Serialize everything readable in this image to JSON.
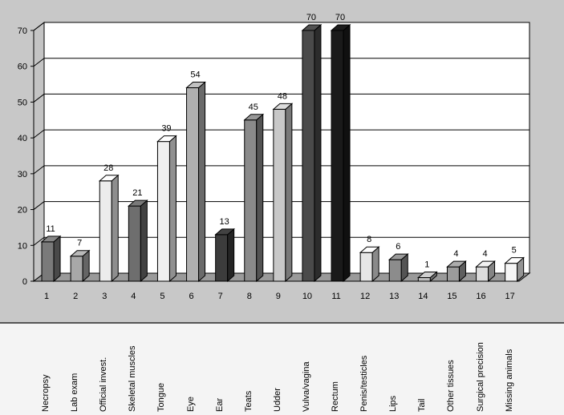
{
  "chart_data": {
    "type": "bar",
    "title": "",
    "xlabel": "",
    "ylabel": "",
    "ylim": [
      0,
      70
    ],
    "yticks": [
      0,
      10,
      20,
      30,
      40,
      50,
      60,
      70
    ],
    "grid": true,
    "categories": [
      "1",
      "2",
      "3",
      "4",
      "5",
      "6",
      "7",
      "8",
      "9",
      "10",
      "11",
      "12",
      "13",
      "14",
      "15",
      "16",
      "17"
    ],
    "values": [
      11,
      7,
      28,
      21,
      39,
      54,
      13,
      45,
      48,
      70,
      70,
      8,
      6,
      1,
      4,
      4,
      5
    ],
    "category_names": [
      "Necropsy",
      "Lab exam",
      "Official invest.",
      "Skeletal muscles",
      "Tongue",
      "Eye",
      "Ear",
      "Teats",
      "Udder",
      "Vulva/vagina",
      "Rectum",
      "Penis/testicles",
      "Lips",
      "Tail",
      "Other tissues",
      "Surgical precision",
      "Missing animals"
    ],
    "bar_colors": [
      "#7a7a7a",
      "#a8a8a8",
      "#ececec",
      "#6e6e6e",
      "#f0f0f0",
      "#b0b0b0",
      "#3c3c3c",
      "#8a8a8a",
      "#c8c8c8",
      "#4a4a4a",
      "#1a1a1a",
      "#e6e6e6",
      "#8c8c8c",
      "#bdbdbd",
      "#9c9c9c",
      "#dcdcdc",
      "#f6f6f6"
    ]
  }
}
